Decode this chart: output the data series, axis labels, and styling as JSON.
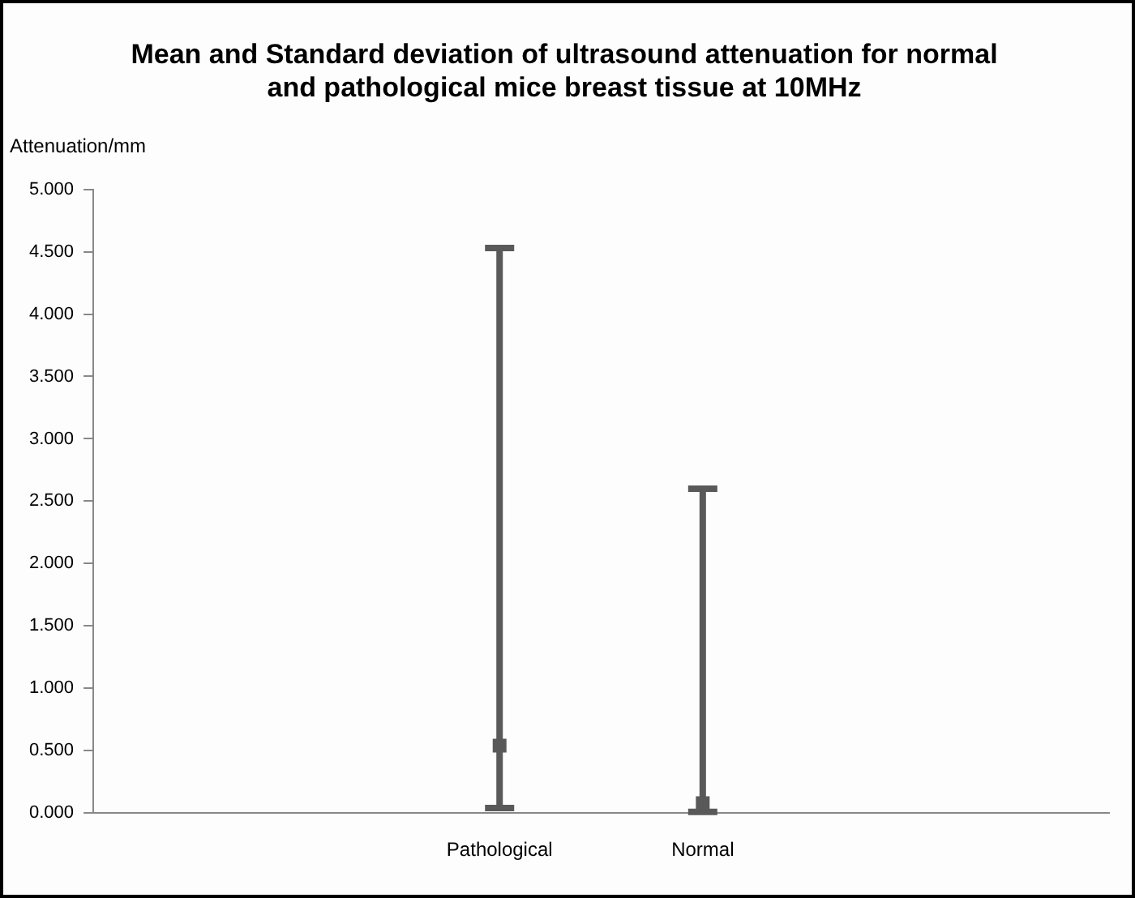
{
  "chart_data": {
    "type": "scatter",
    "title": "Mean and Standard deviation of ultrasound attenuation for normal and pathological mice breast tissue at 10MHz",
    "ylabel": "Attenuation/mm",
    "categories": [
      null,
      null,
      "Pathological",
      "Normal",
      null,
      null
    ],
    "series": [
      {
        "color": "#595959",
        "values": [
          null,
          null,
          0.54,
          0.08,
          null,
          null
        ],
        "errors": [
          null,
          null,
          [
            0.04,
            4.53
          ],
          [
            0.01,
            2.6
          ],
          null,
          null
        ]
      }
    ],
    "ylim": [
      0,
      5
    ],
    "yticks": [
      {
        "value": 0,
        "label": "0.000"
      },
      {
        "value": 0.5,
        "label": "0.500"
      },
      {
        "value": 1,
        "label": "1.000"
      },
      {
        "value": 1.5,
        "label": "1.500"
      },
      {
        "value": 2,
        "label": "2.000"
      },
      {
        "value": 2.5,
        "label": "2.500"
      },
      {
        "value": 3,
        "label": "3.000"
      },
      {
        "value": 3.5,
        "label": "3.500"
      },
      {
        "value": 4,
        "label": "4.000"
      },
      {
        "value": 4.5,
        "label": "4.500"
      },
      {
        "value": 5,
        "label": "5.000"
      }
    ],
    "grid": false,
    "marker": "square",
    "legend": false
  }
}
